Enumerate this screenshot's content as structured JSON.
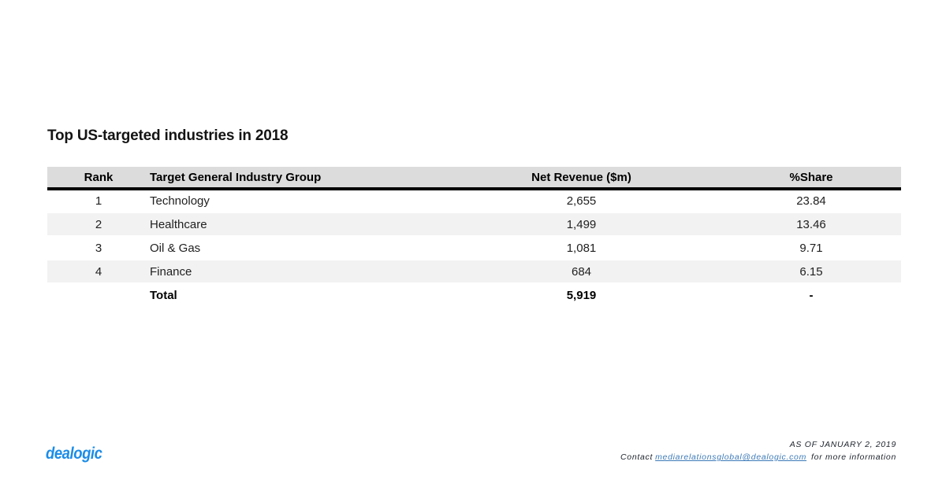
{
  "title": "Top US-targeted industries in 2018",
  "chart_data": {
    "type": "table",
    "title": "Top US-targeted industries in 2018",
    "columns": [
      "Rank",
      "Target General Industry Group",
      "Net Revenue ($m)",
      "%Share"
    ],
    "rows": [
      [
        "1",
        "Technology",
        "2,655",
        "23.84"
      ],
      [
        "2",
        "Healthcare",
        "1,499",
        "13.46"
      ],
      [
        "3",
        "Oil & Gas",
        "1,081",
        "9.71"
      ],
      [
        "4",
        "Finance",
        "684",
        "6.15"
      ]
    ],
    "total_row": [
      "",
      "Total",
      "5,919",
      "-"
    ],
    "layout": "header row gray with thick black underline; rows 2 and 4 shaded; numeric columns center-aligned"
  },
  "table": {
    "headers": {
      "rank": "Rank",
      "industry": "Target General Industry Group",
      "net_revenue": "Net Revenue ($m)",
      "share": "%Share"
    },
    "rows": [
      {
        "rank": "1",
        "industry": "Technology",
        "net_revenue": "2,655",
        "share": "23.84"
      },
      {
        "rank": "2",
        "industry": "Healthcare",
        "net_revenue": "1,499",
        "share": "13.46"
      },
      {
        "rank": "3",
        "industry": "Oil & Gas",
        "net_revenue": "1,081",
        "share": "9.71"
      },
      {
        "rank": "4",
        "industry": "Finance",
        "net_revenue": "684",
        "share": "6.15"
      }
    ],
    "total": {
      "label": "Total",
      "net_revenue": "5,919",
      "share": "-"
    }
  },
  "footer": {
    "logo": "dealogic",
    "as_of": "AS OF JANUARY 2, 2019",
    "contact_prefix": "Contact",
    "contact_email": "mediarelationsglobal@dealogic.com",
    "contact_suffix": "for more information"
  },
  "colors": {
    "header_bg": "#dcdcdc",
    "alt_row_bg": "#f2f2f2",
    "header_rule": "#000000",
    "logo_blue": "#1b8ce8",
    "link_blue": "#3d7ab8",
    "body_text": "#212121"
  }
}
